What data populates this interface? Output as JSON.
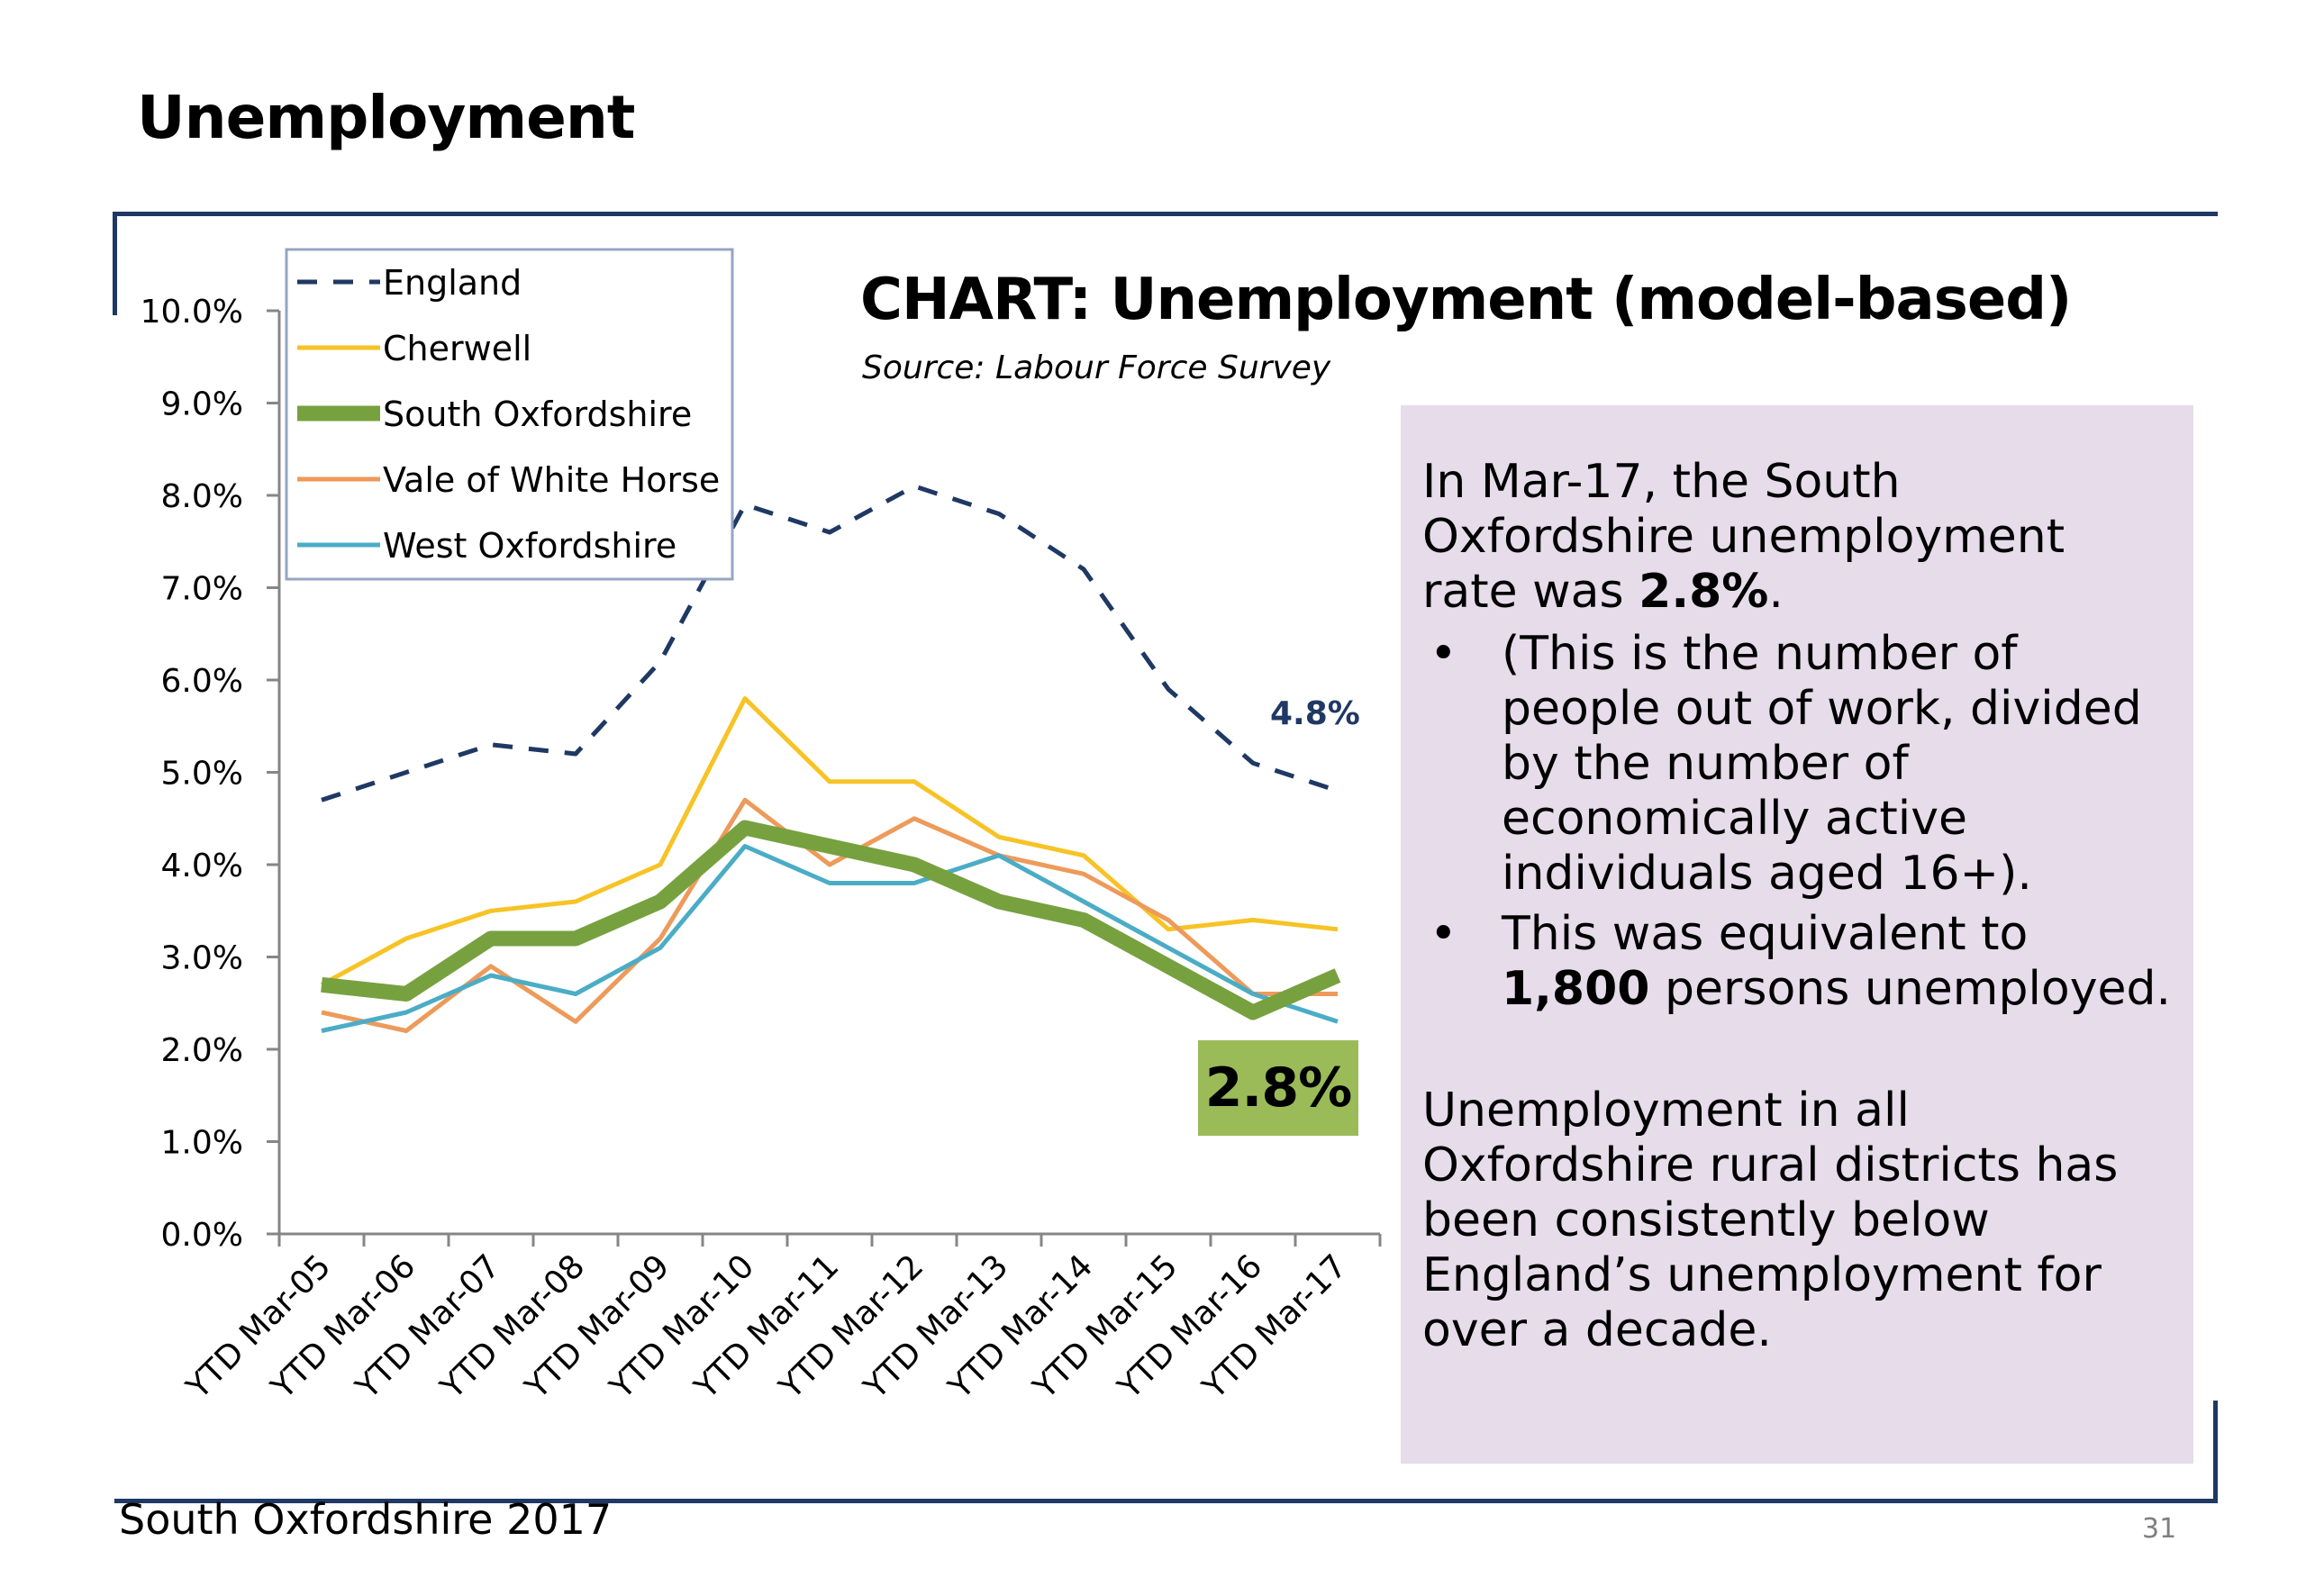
{
  "page": {
    "title": "Unemployment",
    "footer": "South Oxfordshire  2017",
    "page_number": "31"
  },
  "chart_header": {
    "title": "CHART: Unemployment (model-based)",
    "source": "Source: Labour Force Survey"
  },
  "info": {
    "p1_prefix": "In Mar-17, the South Oxfordshire unemployment rate was ",
    "p1_value": "2.8%",
    "p1_suffix": ".",
    "bullet1": "(This is the number of people out of work, divided by the number of economically active individuals aged 16+).",
    "bullet2_prefix": "This was equivalent to ",
    "bullet2_value": "1,800",
    "bullet2_suffix": " persons unemployed.",
    "bullet_symbol": "•",
    "p2": "Unemployment in all Oxfordshire rural districts has been consistently below England’s unemployment for over a decade."
  },
  "annotations": {
    "england_last": "4.8%",
    "south_oxon_last": "2.8%"
  },
  "colors": {
    "england": "#1f3864",
    "cherwell": "#f7c325",
    "south_oxfordshire": "#77a13f",
    "vale_of_white_horse": "#ed9a5a",
    "west_oxfordshire": "#4bacc6",
    "callout_bg": "#9bbb59",
    "panel_bg": "#e6dcea",
    "rule": "#1f3864"
  },
  "chart_data": {
    "type": "line",
    "categories": [
      "YTD Mar-05",
      "YTD Mar-06",
      "YTD Mar-07",
      "YTD Mar-08",
      "YTD Mar-09",
      "YTD Mar-10",
      "YTD Mar-11",
      "YTD Mar-12",
      "YTD Mar-13",
      "YTD Mar-14",
      "YTD Mar-15",
      "YTD Mar-16",
      "YTD Mar-17"
    ],
    "y_ticks": [
      "0.0%",
      "1.0%",
      "2.0%",
      "3.0%",
      "4.0%",
      "5.0%",
      "6.0%",
      "7.0%",
      "8.0%",
      "9.0%",
      "10.0%"
    ],
    "ylim": [
      0,
      10
    ],
    "legend_position": "top-left",
    "series": [
      {
        "name": "England",
        "key": "england",
        "style": "dashed",
        "values": [
          4.7,
          5.0,
          5.3,
          5.2,
          6.2,
          7.9,
          7.6,
          8.1,
          7.8,
          7.2,
          5.9,
          5.1,
          4.8
        ]
      },
      {
        "name": "Cherwell",
        "key": "cherwell",
        "style": "solid",
        "values": [
          2.7,
          3.2,
          3.5,
          3.6,
          4.0,
          5.8,
          4.9,
          4.9,
          4.3,
          4.1,
          3.3,
          3.4,
          3.3
        ]
      },
      {
        "name": "South Oxfordshire",
        "key": "south_oxfordshire",
        "style": "thick",
        "values": [
          2.7,
          2.6,
          3.2,
          3.2,
          3.6,
          4.4,
          4.2,
          4.0,
          3.6,
          3.4,
          2.9,
          2.4,
          2.8
        ]
      },
      {
        "name": "Vale of White Horse",
        "key": "vale_of_white_horse",
        "style": "solid",
        "values": [
          2.4,
          2.2,
          2.9,
          2.3,
          3.2,
          4.7,
          4.0,
          4.5,
          4.1,
          3.9,
          3.4,
          2.6,
          2.6
        ]
      },
      {
        "name": "West Oxfordshire",
        "key": "west_oxfordshire",
        "style": "solid",
        "values": [
          2.2,
          2.4,
          2.8,
          2.6,
          3.1,
          4.2,
          3.8,
          3.8,
          4.1,
          3.6,
          3.1,
          2.6,
          2.3
        ]
      }
    ]
  }
}
